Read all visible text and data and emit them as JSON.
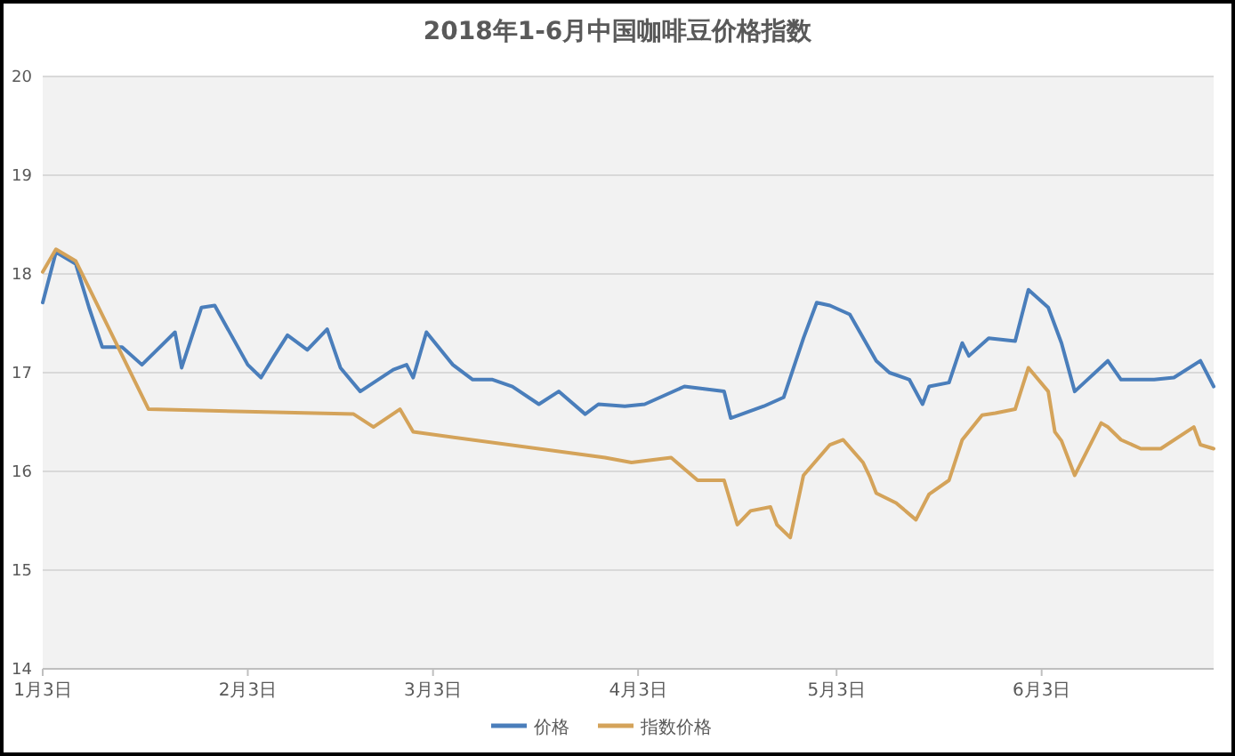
{
  "chart_data": {
    "type": "line",
    "title": "2018年1-6月中国咖啡豆价格指数",
    "xlim": [
      "2018-01-03",
      "2018-06-29"
    ],
    "ylim": [
      14,
      20
    ],
    "yticks": [
      14,
      15,
      16,
      17,
      18,
      19,
      20
    ],
    "xticks": [
      {
        "value": "2018-01-03",
        "label": "1月3日"
      },
      {
        "value": "2018-02-03",
        "label": "2月3日"
      },
      {
        "value": "2018-03-03",
        "label": "3月3日"
      },
      {
        "value": "2018-04-03",
        "label": "4月3日"
      },
      {
        "value": "2018-05-03",
        "label": "5月3日"
      },
      {
        "value": "2018-06-03",
        "label": "6月3日"
      }
    ],
    "grid": "y",
    "legend": "bottom",
    "series": [
      {
        "name": "价格",
        "color": "#4a7ebb",
        "x": [
          "2018-01-03",
          "2018-01-05",
          "2018-01-08",
          "2018-01-10",
          "2018-01-12",
          "2018-01-15",
          "2018-01-18",
          "2018-01-23",
          "2018-01-24",
          "2018-01-27",
          "2018-01-29",
          "2018-02-03",
          "2018-02-05",
          "2018-02-07",
          "2018-02-09",
          "2018-02-12",
          "2018-02-15",
          "2018-02-17",
          "2018-02-20",
          "2018-02-25",
          "2018-02-27",
          "2018-02-28",
          "2018-03-02",
          "2018-03-06",
          "2018-03-09",
          "2018-03-12",
          "2018-03-15",
          "2018-03-19",
          "2018-03-22",
          "2018-03-26",
          "2018-03-28",
          "2018-04-01",
          "2018-04-04",
          "2018-04-10",
          "2018-04-16",
          "2018-04-17",
          "2018-04-22",
          "2018-04-25",
          "2018-04-28",
          "2018-04-30",
          "2018-05-02",
          "2018-05-05",
          "2018-05-09",
          "2018-05-11",
          "2018-05-14",
          "2018-05-16",
          "2018-05-17",
          "2018-05-20",
          "2018-05-22",
          "2018-05-23",
          "2018-05-26",
          "2018-05-30",
          "2018-06-01",
          "2018-06-04",
          "2018-06-06",
          "2018-06-08",
          "2018-06-13",
          "2018-06-15",
          "2018-06-20",
          "2018-06-23",
          "2018-06-27",
          "2018-06-29"
        ],
        "values": [
          17.71,
          18.22,
          18.1,
          17.66,
          17.26,
          17.26,
          17.08,
          17.41,
          17.05,
          17.66,
          17.68,
          17.08,
          16.95,
          17.17,
          17.38,
          17.23,
          17.44,
          17.05,
          16.81,
          17.03,
          17.08,
          16.95,
          17.41,
          17.08,
          16.93,
          16.93,
          16.86,
          16.68,
          16.81,
          16.58,
          16.68,
          16.66,
          16.68,
          16.86,
          16.81,
          16.54,
          16.66,
          16.75,
          17.35,
          17.71,
          17.68,
          17.59,
          17.12,
          17.0,
          16.93,
          16.68,
          16.86,
          16.9,
          17.3,
          17.17,
          17.35,
          17.32,
          17.84,
          17.66,
          17.3,
          16.81,
          17.12,
          16.93,
          16.93,
          16.95,
          17.12,
          16.86
        ]
      },
      {
        "name": "指数价格",
        "color": "#d4a35a",
        "x": [
          "2018-01-03",
          "2018-01-05",
          "2018-01-08",
          "2018-01-10",
          "2018-01-19",
          "2018-02-19",
          "2018-02-22",
          "2018-02-26",
          "2018-02-28",
          "2018-03-29",
          "2018-04-02",
          "2018-04-08",
          "2018-04-12",
          "2018-04-16",
          "2018-04-18",
          "2018-04-20",
          "2018-04-23",
          "2018-04-24",
          "2018-04-26",
          "2018-04-28",
          "2018-05-02",
          "2018-05-04",
          "2018-05-07",
          "2018-05-08",
          "2018-05-09",
          "2018-05-12",
          "2018-05-15",
          "2018-05-17",
          "2018-05-20",
          "2018-05-22",
          "2018-05-25",
          "2018-05-27",
          "2018-05-30",
          "2018-06-01",
          "2018-06-04",
          "2018-06-05",
          "2018-06-06",
          "2018-06-08",
          "2018-06-12",
          "2018-06-13",
          "2018-06-15",
          "2018-06-18",
          "2018-06-21",
          "2018-06-26",
          "2018-06-27",
          "2018-06-29"
        ],
        "values": [
          18.02,
          18.25,
          18.13,
          17.86,
          16.63,
          16.58,
          16.45,
          16.63,
          16.4,
          16.14,
          16.09,
          16.14,
          15.91,
          15.91,
          15.46,
          15.6,
          15.64,
          15.46,
          15.33,
          15.96,
          16.27,
          16.32,
          16.09,
          15.95,
          15.78,
          15.68,
          15.51,
          15.77,
          15.91,
          16.32,
          16.57,
          16.59,
          16.63,
          17.05,
          16.81,
          16.4,
          16.31,
          15.96,
          16.49,
          16.45,
          16.32,
          16.23,
          16.23,
          16.45,
          16.27,
          16.23
        ]
      }
    ]
  }
}
